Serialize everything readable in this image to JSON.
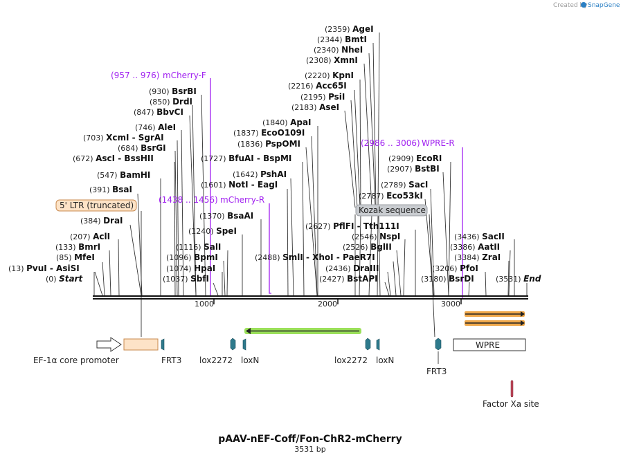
{
  "credit": "Created by",
  "app": "SnapGene",
  "title": "pAAV-nEF-Coff/Fon-ChR2-mCherry",
  "length": "3531 bp",
  "ticks": [
    "1000",
    "2000",
    "3000"
  ],
  "sites": [
    {
      "pos": "(0)",
      "name": "Start",
      "italic": true
    },
    {
      "pos": "(13)",
      "name": "PvuI  - AsiSI"
    },
    {
      "pos": "(85)",
      "name": "MfeI"
    },
    {
      "pos": "(133)",
      "name": "BmrI"
    },
    {
      "pos": "(207)",
      "name": "AclI"
    },
    {
      "pos": "(384)",
      "name": "DraI"
    },
    {
      "pos": "(391)",
      "name": "BsaI"
    },
    {
      "pos": "(547)",
      "name": "BamHI"
    },
    {
      "pos": "(672)",
      "name": "AscI  - BssHII"
    },
    {
      "pos": "(684)",
      "name": "BsrGI"
    },
    {
      "pos": "(703)",
      "name": "XcmI  - SgrAI"
    },
    {
      "pos": "(746)",
      "name": "AleI"
    },
    {
      "pos": "(847)",
      "name": "BbvCI"
    },
    {
      "pos": "(850)",
      "name": "DrdI"
    },
    {
      "pos": "(930)",
      "name": "BsrBI"
    },
    {
      "pos": "(1037)",
      "name": "SbfI"
    },
    {
      "pos": "(1074)",
      "name": "HpaI"
    },
    {
      "pos": "(1096)",
      "name": "BpmI"
    },
    {
      "pos": "(1116)",
      "name": "SalI"
    },
    {
      "pos": "(1240)",
      "name": "SpeI"
    },
    {
      "pos": "(1370)",
      "name": "BsaAI"
    },
    {
      "pos": "(1601)",
      "name": "NotI  - EagI"
    },
    {
      "pos": "(1642)",
      "name": "PshAI"
    },
    {
      "pos": "(1727)",
      "name": "BfuAI  - BspMI"
    },
    {
      "pos": "(1836)",
      "name": "PspOMI"
    },
    {
      "pos": "(1837)",
      "name": "EcoO109I"
    },
    {
      "pos": "(1840)",
      "name": "ApaI"
    },
    {
      "pos": "(2488)",
      "name": "SmlI  - XhoI  - PaeR7I"
    },
    {
      "pos": "(2427)",
      "name": "BstAPI"
    },
    {
      "pos": "(2436)",
      "name": "DraIII"
    },
    {
      "pos": "(2526)",
      "name": "BglII"
    },
    {
      "pos": "(2546)",
      "name": "NspI"
    },
    {
      "pos": "(2627)",
      "name": "PflFI  - Tth111I"
    },
    {
      "pos": "(2787)",
      "name": "Eco53kI"
    },
    {
      "pos": "(2789)",
      "name": "SacI"
    },
    {
      "pos": "(2907)",
      "name": "BstBI"
    },
    {
      "pos": "(2909)",
      "name": "EcoRI"
    },
    {
      "pos": "(2183)",
      "name": "AseI"
    },
    {
      "pos": "(2195)",
      "name": "PsiI"
    },
    {
      "pos": "(2216)",
      "name": "Acc65I"
    },
    {
      "pos": "(2220)",
      "name": "KpnI"
    },
    {
      "pos": "(2308)",
      "name": "XmnI"
    },
    {
      "pos": "(2340)",
      "name": "NheI"
    },
    {
      "pos": "(2344)",
      "name": "BmtI"
    },
    {
      "pos": "(2359)",
      "name": "AgeI"
    },
    {
      "pos": "(3180)",
      "name": "BsrDI"
    },
    {
      "pos": "(3206)",
      "name": "PfoI"
    },
    {
      "pos": "(3384)",
      "name": "ZraI"
    },
    {
      "pos": "(3386)",
      "name": "AatII"
    },
    {
      "pos": "(3436)",
      "name": "SacII"
    },
    {
      "pos": "(3531)",
      "name": "End",
      "italic": true
    }
  ],
  "primers": [
    {
      "range": "(957 .. 976)",
      "name": "mCherry-F"
    },
    {
      "range": "(1438 .. 1456)",
      "name": "mCherry-R"
    },
    {
      "range": "(2986 .. 3006)",
      "name": "WPRE-R"
    }
  ],
  "callouts": {
    "ltr": "5' LTR (truncated)",
    "kozak": "Kozak sequence"
  },
  "features": {
    "ef1a": "EF-1α core promoter",
    "frt3_a": "FRT3",
    "lox2272_a": "lox2272",
    "loxn_a": "loxN",
    "lox2272_b": "lox2272",
    "loxn_b": "loxN",
    "frt3_b": "FRT3",
    "wpre": "WPRE",
    "factor_xa": "Factor Xa site"
  },
  "colors": {
    "primer": "#a020f0",
    "backbone": "#111111",
    "ltr_fill": "#fde3c7",
    "ltr_stroke": "#c8894e",
    "kozak_fill": "#c9ccd0",
    "site_marker": "#2e7a8c",
    "orf_green": "#9be05a",
    "orf_orange": "#f0a84a",
    "factor_xa": "#c0485a"
  }
}
